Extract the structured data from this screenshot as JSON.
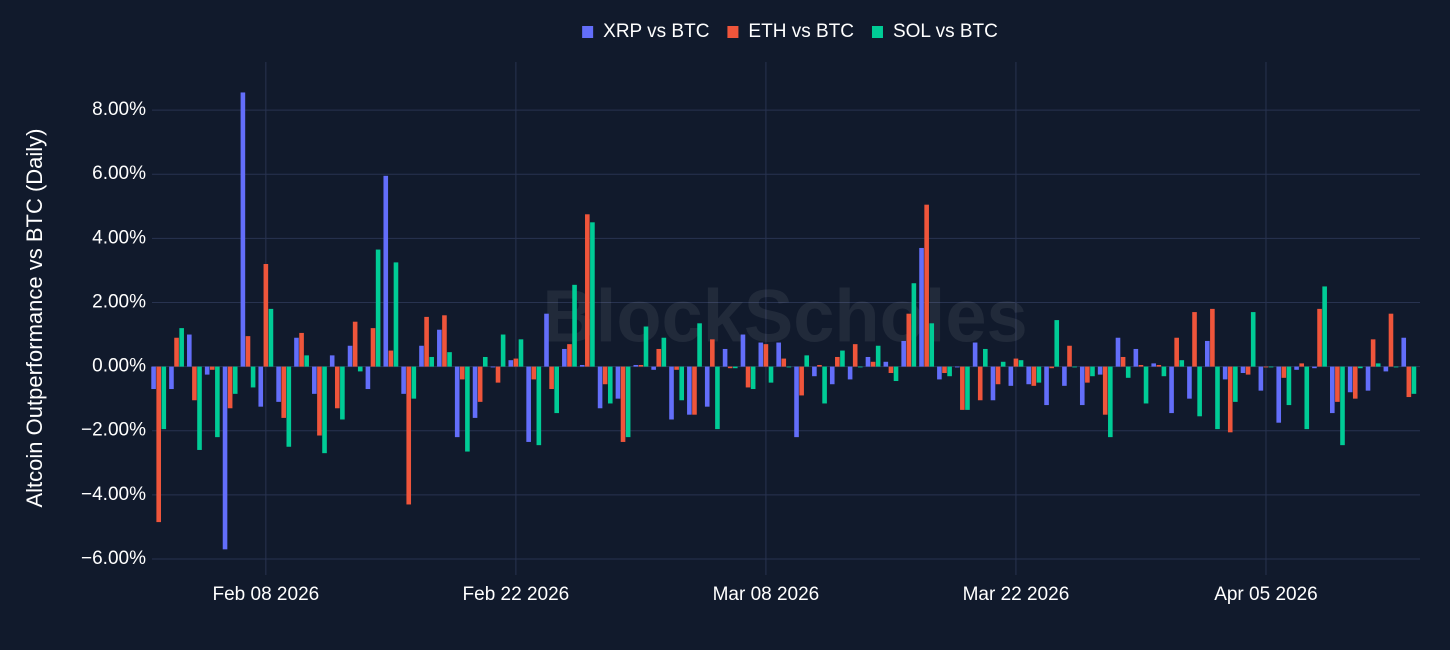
{
  "chart_data": {
    "type": "bar",
    "watermark": "BlockScholes",
    "y_label": "Altcoin Outperformance vs BTC (Daily)",
    "x": [
      "2026-02-02",
      "2026-02-03",
      "2026-02-04",
      "2026-02-05",
      "2026-02-06",
      "2026-02-07",
      "2026-02-08",
      "2026-02-09",
      "2026-02-10",
      "2026-02-11",
      "2026-02-12",
      "2026-02-13",
      "2026-02-14",
      "2026-02-15",
      "2026-02-16",
      "2026-02-17",
      "2026-02-18",
      "2026-02-19",
      "2026-02-20",
      "2026-02-21",
      "2026-02-22",
      "2026-02-23",
      "2026-02-24",
      "2026-02-25",
      "2026-02-26",
      "2026-02-27",
      "2026-02-28",
      "2026-03-01",
      "2026-03-02",
      "2026-03-03",
      "2026-03-04",
      "2026-03-05",
      "2026-03-06",
      "2026-03-07",
      "2026-03-08",
      "2026-03-09",
      "2026-03-10",
      "2026-03-11",
      "2026-03-12",
      "2026-03-13",
      "2026-03-14",
      "2026-03-15",
      "2026-03-16",
      "2026-03-17",
      "2026-03-18",
      "2026-03-19",
      "2026-03-20",
      "2026-03-21",
      "2026-03-22",
      "2026-03-23",
      "2026-03-24",
      "2026-03-25",
      "2026-03-26",
      "2026-03-27",
      "2026-03-28",
      "2026-03-29",
      "2026-03-30",
      "2026-03-31",
      "2026-04-01",
      "2026-04-02",
      "2026-04-03",
      "2026-04-04",
      "2026-04-05",
      "2026-04-06",
      "2026-04-07",
      "2026-04-08",
      "2026-04-09",
      "2026-04-10",
      "2026-04-11",
      "2026-04-12",
      "2026-04-13"
    ],
    "series": [
      {
        "name": "XRP vs BTC",
        "color": "#636efa",
        "values": [
          -0.7,
          -0.7,
          1.0,
          -0.25,
          -5.7,
          8.55,
          -1.25,
          -1.1,
          0.9,
          -0.85,
          0.35,
          0.65,
          -0.7,
          5.95,
          -0.85,
          0.65,
          1.15,
          -2.2,
          -1.6,
          0,
          0.2,
          -2.35,
          1.65,
          0.55,
          0.05,
          -1.3,
          -1.0,
          0.05,
          -0.1,
          -1.65,
          -1.5,
          -1.25,
          0.55,
          1.0,
          0.75,
          0.75,
          -2.2,
          -0.3,
          -0.55,
          -0.4,
          0.3,
          0.15,
          0.8,
          3.7,
          -0.4,
          0,
          0.75,
          -1.05,
          -0.6,
          -0.55,
          -1.2,
          -0.6,
          -1.2,
          -0.25,
          0.9,
          0.55,
          0.1,
          -1.45,
          -1.0,
          0.8,
          -0.4,
          -0.2,
          -0.75,
          -1.75,
          -0.1,
          -0.05,
          -1.45,
          -0.8,
          -0.75,
          -0.15,
          0.9
        ]
      },
      {
        "name": "ETH vs BTC",
        "color": "#ef553b",
        "values": [
          -4.85,
          0.9,
          -1.05,
          -0.1,
          -1.3,
          0.95,
          3.2,
          -1.6,
          1.05,
          -2.15,
          -1.3,
          1.4,
          1.2,
          0.5,
          -4.3,
          1.55,
          1.6,
          -0.4,
          -1.1,
          -0.5,
          0.25,
          -0.4,
          -0.7,
          0.7,
          4.75,
          -0.55,
          -2.35,
          0.05,
          0.55,
          -0.1,
          -1.5,
          0.85,
          -0.05,
          -0.65,
          0.7,
          0.25,
          -0.9,
          0.05,
          0.3,
          0.7,
          0.15,
          -0.2,
          1.65,
          5.05,
          -0.2,
          -1.35,
          -1.05,
          -0.55,
          0.25,
          -0.6,
          -0.05,
          0.65,
          -0.5,
          -1.5,
          0.3,
          0.05,
          0.05,
          0.9,
          1.7,
          1.8,
          -2.05,
          -0.25,
          0,
          -0.35,
          0.1,
          1.8,
          -1.1,
          -1.0,
          0.85,
          1.65,
          -0.95
        ]
      },
      {
        "name": "SOL vs BTC",
        "color": "#00cc96",
        "values": [
          -1.95,
          1.2,
          -2.6,
          -2.2,
          -0.85,
          -0.65,
          1.8,
          -2.5,
          0.35,
          -2.7,
          -1.65,
          -0.15,
          3.65,
          3.25,
          -1.0,
          0.3,
          0.45,
          -2.65,
          0.3,
          1.0,
          0.85,
          -2.45,
          -1.45,
          2.55,
          4.5,
          -1.15,
          -2.2,
          1.25,
          0.9,
          -1.05,
          1.35,
          -1.95,
          -0.05,
          -0.7,
          -0.5,
          0,
          0.35,
          -1.15,
          0.5,
          0,
          0.65,
          -0.45,
          2.6,
          1.35,
          -0.3,
          -1.35,
          0.55,
          0.15,
          0.2,
          -0.5,
          1.45,
          0,
          -0.3,
          -2.2,
          -0.35,
          -1.15,
          -0.3,
          0.2,
          -1.55,
          -1.95,
          -1.1,
          1.7,
          0,
          -1.2,
          -1.95,
          2.5,
          -2.45,
          -0.05,
          0.1,
          0,
          -0.85
        ]
      }
    ],
    "xlim": [
      "2026-02-01T15:00",
      "2026-04-13T15:00"
    ],
    "xticks": [
      {
        "value": "2026-02-08",
        "label": "Feb 08 2026"
      },
      {
        "value": "2026-02-22",
        "label": "Feb 22 2026"
      },
      {
        "value": "2026-03-08",
        "label": "Mar 08 2026"
      },
      {
        "value": "2026-03-22",
        "label": "Mar 22 2026"
      },
      {
        "value": "2026-04-05",
        "label": "Apr 05 2026"
      }
    ],
    "ylim": [
      -6.5,
      9.5
    ],
    "yticks": [
      {
        "value": -6,
        "label": "−6.00%"
      },
      {
        "value": -4,
        "label": "−4.00%"
      },
      {
        "value": -2,
        "label": "−2.00%"
      },
      {
        "value": 0,
        "label": "0.00%"
      },
      {
        "value": 2,
        "label": "2.00%"
      },
      {
        "value": 4,
        "label": "4.00%"
      },
      {
        "value": 6,
        "label": "6.00%"
      },
      {
        "value": 8,
        "label": "8.00%"
      }
    ],
    "grid": true,
    "legend": "top"
  }
}
